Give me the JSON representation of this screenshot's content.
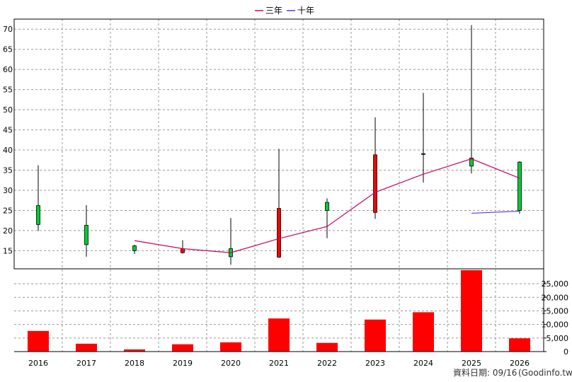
{
  "chart_data": [
    {
      "type": "candlestick",
      "legend_position": "top-center",
      "grid": true,
      "ylim": [
        10.5,
        72.5
      ],
      "yticks": [
        15,
        20,
        25,
        30,
        35,
        40,
        45,
        50,
        55,
        60,
        65,
        70
      ],
      "categories": [
        "2016",
        "2017",
        "2018",
        "2019",
        "2020",
        "2021",
        "2022",
        "2023",
        "2024",
        "2025",
        "2026"
      ],
      "candles": [
        {
          "year": "2016",
          "open": 21.5,
          "high": 36.2,
          "low": 19.9,
          "close": 26.2
        },
        {
          "year": "2017",
          "open": 16.5,
          "high": 26.3,
          "low": 13.5,
          "close": 21.3
        },
        {
          "year": "2018",
          "open": 15.0,
          "high": 16.5,
          "low": 14.2,
          "close": 16.2
        },
        {
          "year": "2019",
          "open": 15.5,
          "high": 17.6,
          "low": 14.3,
          "close": 14.5
        },
        {
          "year": "2020",
          "open": 13.5,
          "high": 23.1,
          "low": 11.5,
          "close": 15.5
        },
        {
          "year": "2021",
          "open": 25.5,
          "high": 40.3,
          "low": 13.2,
          "close": 13.4
        },
        {
          "year": "2022",
          "open": 25.0,
          "high": 28.0,
          "low": 18.1,
          "close": 27.0
        },
        {
          "year": "2023",
          "open": 38.8,
          "high": 48.1,
          "low": 22.9,
          "close": 24.5
        },
        {
          "year": "2024",
          "open": 39.1,
          "high": 54.2,
          "low": 31.9,
          "close": 38.9
        },
        {
          "year": "2025",
          "open": 36.0,
          "high": 71.0,
          "low": 34.2,
          "close": 38.0
        },
        {
          "year": "2026",
          "open": 25.0,
          "high": 37.2,
          "low": 24.2,
          "close": 37.0
        }
      ],
      "series": [
        {
          "name": "三年",
          "color": "#cc0066",
          "points": [
            [
              "2018",
              17.5
            ],
            [
              "2019",
              15.5
            ],
            [
              "2020",
              14.5
            ],
            [
              "2021",
              18.0
            ],
            [
              "2022",
              21.0
            ],
            [
              "2023",
              29.5
            ],
            [
              "2024",
              34.0
            ],
            [
              "2025",
              37.8
            ],
            [
              "2026",
              33.0
            ]
          ]
        },
        {
          "name": "十年",
          "color": "#6633cc",
          "points": [
            [
              "2025",
              24.3
            ],
            [
              "2026",
              24.8
            ]
          ]
        }
      ],
      "up_color": "#00cc33",
      "down_color": "#ff0000"
    },
    {
      "type": "bar",
      "categories": [
        "2016",
        "2017",
        "2018",
        "2019",
        "2020",
        "2021",
        "2022",
        "2023",
        "2024",
        "2025",
        "2026"
      ],
      "values": [
        7600,
        2900,
        800,
        2700,
        3400,
        12200,
        3200,
        11800,
        14500,
        30000,
        4900
      ],
      "color": "#ff0000",
      "ylim": [
        0,
        30500
      ],
      "yticks": [
        0,
        5000,
        10000,
        15000,
        20000,
        25000
      ],
      "ytick_labels": [
        "0",
        "5,000",
        "10,000",
        "15,000",
        "20,000",
        "25,000"
      ]
    }
  ],
  "footer": {
    "label": "資料日期: 09/16",
    "source": "(Goodinfo.tw)"
  }
}
